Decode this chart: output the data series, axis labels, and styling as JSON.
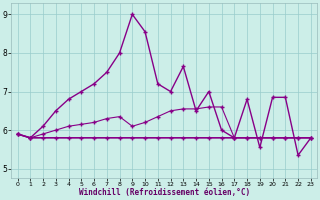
{
  "xlabel": "Windchill (Refroidissement éolien,°C)",
  "background_color": "#cceee8",
  "line_color": "#880088",
  "xlim": [
    -0.5,
    23.5
  ],
  "ylim": [
    4.75,
    9.3
  ],
  "yticks": [
    5,
    6,
    7,
    8,
    9
  ],
  "xticks": [
    0,
    1,
    2,
    3,
    4,
    5,
    6,
    7,
    8,
    9,
    10,
    11,
    12,
    13,
    14,
    15,
    16,
    17,
    18,
    19,
    20,
    21,
    22,
    23
  ],
  "series1_x": [
    0,
    1,
    2,
    3,
    4,
    5,
    6,
    7,
    8,
    9,
    10,
    11,
    12,
    13,
    14,
    15,
    16,
    17,
    18,
    19,
    20,
    21,
    22,
    23
  ],
  "series1_y": [
    5.9,
    5.8,
    5.8,
    5.8,
    5.8,
    5.8,
    5.8,
    5.8,
    5.8,
    5.8,
    5.8,
    5.8,
    5.8,
    5.8,
    5.8,
    5.8,
    5.8,
    5.8,
    5.8,
    5.8,
    5.8,
    5.8,
    5.8,
    5.8
  ],
  "series2_x": [
    0,
    1,
    2,
    3,
    4,
    5,
    6,
    7,
    8,
    9,
    10,
    11,
    12,
    13,
    14,
    15,
    16,
    17,
    18,
    19,
    20,
    21,
    22,
    23
  ],
  "series2_y": [
    5.9,
    5.8,
    5.9,
    6.0,
    6.1,
    6.15,
    6.2,
    6.3,
    6.35,
    6.1,
    6.2,
    6.35,
    6.5,
    6.55,
    6.55,
    6.6,
    6.6,
    5.8,
    5.8,
    5.8,
    5.8,
    5.8,
    5.8,
    5.8
  ],
  "series3_x": [
    0,
    1,
    2,
    3,
    4,
    5,
    6,
    7,
    8,
    9,
    10,
    11,
    12,
    13,
    14,
    15,
    16,
    17,
    18,
    19,
    20,
    21,
    22,
    23
  ],
  "series3_y": [
    5.9,
    5.8,
    6.1,
    6.5,
    6.8,
    7.0,
    7.2,
    7.5,
    8.0,
    9.0,
    8.55,
    7.2,
    7.0,
    7.65,
    6.5,
    7.0,
    6.0,
    5.8,
    6.8,
    5.55,
    6.85,
    6.85,
    5.35,
    5.8
  ]
}
